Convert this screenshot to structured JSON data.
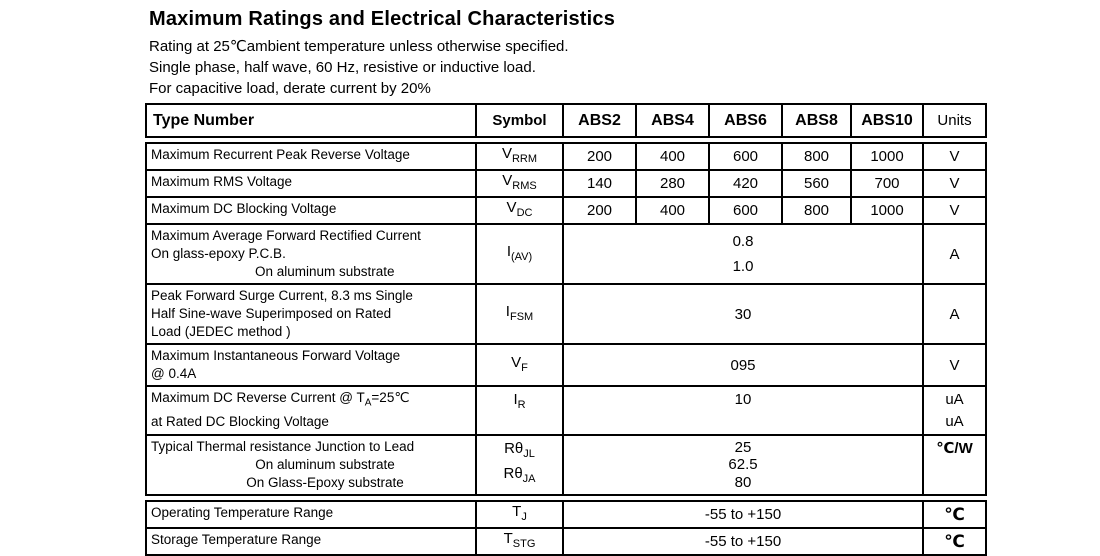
{
  "colors": {
    "background": "#ffffff",
    "text": "#000000",
    "border": "#000000"
  },
  "page": {
    "title": "Maximum Ratings and Electrical Characteristics",
    "notes": [
      "Rating at 25℃ambient temperature unless otherwise specified.",
      "Single phase, half wave, 60 Hz, resistive or inductive load.",
      "For capacitive load, derate current by 20%"
    ]
  },
  "table": {
    "header": {
      "type_number": "Type Number",
      "symbol": "Symbol",
      "models": [
        "ABS2",
        "ABS4",
        "ABS6",
        "ABS8",
        "ABS10"
      ],
      "units": "Units"
    },
    "groups": [
      {
        "rows": [
          {
            "label_lines": [
              {
                "seg": [
                  "Maximum Recurrent Peak Reverse Voltage"
                ]
              }
            ],
            "symbols": [
              {
                "base": "V",
                "sub": "RRM"
              }
            ],
            "values": [
              "200",
              "400",
              "600",
              "800",
              "1000"
            ],
            "units_lines": [
              "V"
            ]
          },
          {
            "label_lines": [
              {
                "seg": [
                  "Maximum RMS Voltage"
                ]
              }
            ],
            "symbols": [
              {
                "base": "V",
                "sub": "RMS"
              }
            ],
            "values": [
              "140",
              "280",
              "420",
              "560",
              "700"
            ],
            "units_lines": [
              "V"
            ]
          },
          {
            "label_lines": [
              {
                "seg": [
                  "Maximum DC Blocking Voltage"
                ]
              }
            ],
            "symbols": [
              {
                "base": "V",
                "sub": "DC"
              }
            ],
            "values": [
              "200",
              "400",
              "600",
              "800",
              "1000"
            ],
            "units_lines": [
              "V"
            ]
          },
          {
            "label_lines": [
              {
                "seg": [
                  "Maximum Average Forward Rectified Current"
                ]
              },
              {
                "seg": [
                  "On glass-epoxy P.C.B."
                ]
              },
              {
                "seg": [
                  "On aluminum substrate"
                ],
                "align": "indent"
              }
            ],
            "symbols": [
              {
                "base": "I",
                "sub": "(AV)"
              }
            ],
            "merged_values": [
              "0.8",
              "1.0"
            ],
            "units_lines": [
              "A"
            ]
          },
          {
            "label_lines": [
              {
                "seg": [
                  "Peak Forward Surge Current, 8.3 ms Single"
                ]
              },
              {
                "seg": [
                  "Half Sine-wave Superimposed on Rated"
                ]
              },
              {
                "seg": [
                  "Load (JEDEC method )"
                ]
              }
            ],
            "symbols": [
              {
                "base": "I",
                "sub": "FSM"
              }
            ],
            "merged_values": [
              "30"
            ],
            "units_lines": [
              "A"
            ]
          },
          {
            "label_lines": [
              {
                "seg": [
                  "Maximum Instantaneous Forward Voltage"
                ]
              },
              {
                "seg": [
                  "@ 0.4A"
                ]
              }
            ],
            "symbols": [
              {
                "base": "V",
                "sub": "F"
              }
            ],
            "merged_values": [
              "095"
            ],
            "units_lines": [
              "V"
            ]
          },
          {
            "label_lines": [
              {
                "seg": [
                  "Maximum DC Reverse Current @ T",
                  {
                    "sub": "A"
                  },
                  "=25℃"
                ]
              },
              {
                "seg": [
                  "at Rated DC Blocking Voltage"
                ]
              }
            ],
            "symbols": [
              {
                "base": "I",
                "sub": "R"
              }
            ],
            "sym_valign": "top",
            "merged_values": [
              "10"
            ],
            "value_valign": "top",
            "units_lines": [
              "uA",
              "uA"
            ]
          },
          {
            "label_lines": [
              {
                "seg": [
                  "Typical Thermal resistance Junction to Lead"
                ]
              },
              {
                "seg": [
                  "On aluminum substrate"
                ],
                "align": "center"
              },
              {
                "seg": [
                  "On Glass-Epoxy substrate"
                ],
                "align": "center"
              }
            ],
            "symbols": [
              {
                "base": "Rθ",
                "sub": "JL"
              },
              {
                "base": "Rθ",
                "sub": "JA"
              }
            ],
            "sym_valign": "top",
            "merged_values": [
              "25",
              "62.5",
              "80"
            ],
            "units_lines": [
              "℃/W"
            ],
            "units_style": "bold-top"
          }
        ]
      },
      {
        "rows": [
          {
            "label_lines": [
              {
                "seg": [
                  "Operating Temperature Range"
                ]
              }
            ],
            "symbols": [
              {
                "base": "T",
                "sub": "J"
              }
            ],
            "merged_values": [
              "-55 to +150"
            ],
            "units_lines": [
              "℃"
            ],
            "units_style": "celsius"
          },
          {
            "label_lines": [
              {
                "seg": [
                  "Storage Temperature Range"
                ]
              }
            ],
            "symbols": [
              {
                "base": "T",
                "sub": "STG"
              }
            ],
            "merged_values": [
              "-55 to +150"
            ],
            "units_lines": [
              "℃"
            ],
            "units_style": "celsius"
          }
        ]
      }
    ]
  }
}
